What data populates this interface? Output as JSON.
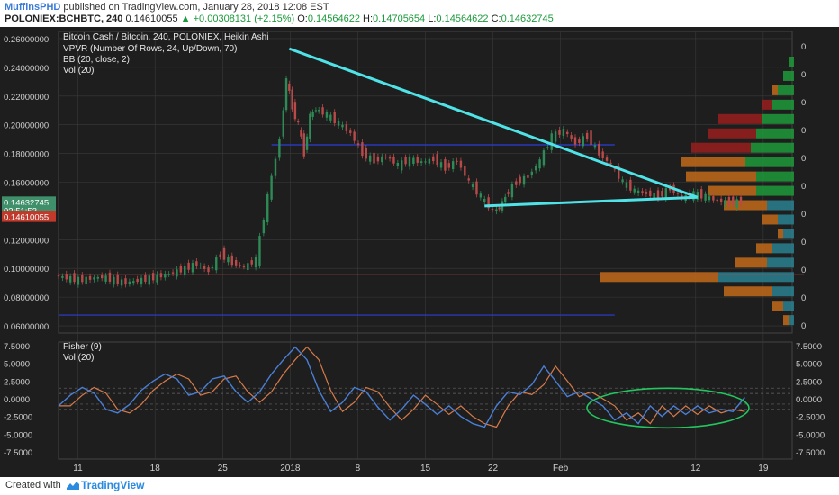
{
  "header": {
    "author": "MuffinsPHD",
    "published_text": "published on TradingView.com, January 28, 2018 12:08 EST",
    "symbol": "POLONIEX:BCHBTC, 240",
    "last": "0.14610055",
    "change": "+0.00308131 (+2.15%)",
    "o_label": "O:",
    "o": "0.14564622",
    "h_label": "H:",
    "h": "0.14705654",
    "l_label": "L:",
    "l": "0.14564622",
    "c_label": "C:",
    "c": "0.14632745"
  },
  "footer": {
    "created": "Created with",
    "brand": "TradingView"
  },
  "colors": {
    "bg": "#1e1e1e",
    "grid": "#3a3a3a",
    "trendline": "#4fe3e8",
    "candle_up": "#2e8b57",
    "candle_down": "#b84a4a",
    "fisher": "#4a7fd6",
    "trigger": "#d67a4a",
    "circle": "#22c55e",
    "vp_up": "#2a8090",
    "vp_down": "#c26a1a",
    "vp_up2": "#1f9a3a",
    "vp_down2": "#9a1f1f"
  },
  "chart_data": [
    {
      "type": "candlestick",
      "title": "Bitcoin Cash / Bitcoin, 240, POLONIEX, Heikin Ashi",
      "indicators": [
        "VPVR (Number Of Rows, 24, Up/Down, 70)",
        "BB (20, close, 2)",
        "Vol (20)"
      ],
      "y_ticks": [
        "0.26000000",
        "0.24000000",
        "0.22000000",
        "0.20000000",
        "0.18000000",
        "0.16000000",
        "0.14632745",
        "02:51:53",
        "0.14610055",
        "0.12000000",
        "0.10000000",
        "0.08000000",
        "0.06000000"
      ],
      "ylim": [
        0.055,
        0.265
      ],
      "x_ticks": [
        "11",
        "18",
        "25",
        "2018",
        "8",
        "15",
        "22",
        "Feb",
        "12",
        "19"
      ],
      "close_trace": [
        [
          0,
          0.095
        ],
        [
          2,
          0.092
        ],
        [
          4,
          0.094
        ],
        [
          6,
          0.09
        ],
        [
          8,
          0.093
        ],
        [
          10,
          0.097
        ],
        [
          12,
          0.103
        ],
        [
          13,
          0.098
        ],
        [
          14,
          0.11
        ],
        [
          15,
          0.104
        ],
        [
          16,
          0.101
        ],
        [
          17,
          0.106
        ],
        [
          18,
          0.15
        ],
        [
          19,
          0.19
        ],
        [
          19.5,
          0.232
        ],
        [
          20,
          0.212
        ],
        [
          20.5,
          0.2
        ],
        [
          21,
          0.18
        ],
        [
          21.5,
          0.206
        ],
        [
          22,
          0.211
        ],
        [
          23,
          0.207
        ],
        [
          24,
          0.201
        ],
        [
          25,
          0.194
        ],
        [
          26,
          0.18
        ],
        [
          27,
          0.175
        ],
        [
          28,
          0.178
        ],
        [
          29,
          0.172
        ],
        [
          30,
          0.176
        ],
        [
          31,
          0.174
        ],
        [
          32,
          0.176
        ],
        [
          33,
          0.17
        ],
        [
          34,
          0.175
        ],
        [
          35,
          0.16
        ],
        [
          36,
          0.15
        ],
        [
          37,
          0.14
        ],
        [
          37.5,
          0.142
        ],
        [
          38,
          0.15
        ],
        [
          39,
          0.16
        ],
        [
          40,
          0.164
        ],
        [
          41,
          0.175
        ],
        [
          42,
          0.192
        ],
        [
          43,
          0.196
        ],
        [
          44,
          0.187
        ],
        [
          45,
          0.192
        ],
        [
          46,
          0.18
        ],
        [
          47,
          0.172
        ],
        [
          48,
          0.16
        ],
        [
          49,
          0.154
        ],
        [
          50,
          0.152
        ],
        [
          51,
          0.15
        ],
        [
          52,
          0.156
        ],
        [
          53,
          0.149
        ],
        [
          54,
          0.152
        ],
        [
          55,
          0.15
        ],
        [
          56,
          0.147
        ],
        [
          57,
          0.146
        ],
        [
          58,
          0.1463
        ]
      ],
      "trendlines": [
        {
          "from": [
            19.5,
            0.253
          ],
          "to": [
            54,
            0.1495
          ]
        },
        {
          "from": [
            36,
            0.1435
          ],
          "to": [
            54,
            0.1495
          ]
        }
      ],
      "levels": [
        {
          "label": "",
          "y": 0.186,
          "x": [
            18,
            47
          ]
        },
        {
          "label": "",
          "y": 0.0955,
          "x": [
            0,
            63
          ]
        },
        {
          "label": "",
          "y": 0.0675,
          "x": [
            0,
            47
          ]
        }
      ],
      "volume_profile": [
        {
          "y": 0.244,
          "up": 1,
          "down": 0
        },
        {
          "y": 0.234,
          "up": 2,
          "down": 0
        },
        {
          "y": 0.224,
          "up": 3,
          "down": 1
        },
        {
          "y": 0.214,
          "up": 4,
          "down": 2
        },
        {
          "y": 0.204,
          "up": 6,
          "down": 8
        },
        {
          "y": 0.194,
          "up": 7,
          "down": 9
        },
        {
          "y": 0.184,
          "up": 8,
          "down": 11
        },
        {
          "y": 0.174,
          "up": 9,
          "down": 12
        },
        {
          "y": 0.164,
          "up": 7,
          "down": 13
        },
        {
          "y": 0.154,
          "up": 7,
          "down": 9
        },
        {
          "y": 0.144,
          "up": 5,
          "down": 8
        },
        {
          "y": 0.134,
          "up": 3,
          "down": 3
        },
        {
          "y": 0.124,
          "up": 2,
          "down": 1
        },
        {
          "y": 0.114,
          "up": 4,
          "down": 3
        },
        {
          "y": 0.104,
          "up": 5,
          "down": 6
        },
        {
          "y": 0.094,
          "up": 14,
          "down": 22
        },
        {
          "y": 0.084,
          "up": 4,
          "down": 9
        },
        {
          "y": 0.074,
          "up": 2,
          "down": 2
        },
        {
          "y": 0.064,
          "up": 1,
          "down": 1
        }
      ],
      "axis_right_ticks": [
        "0",
        "0",
        "0",
        "0",
        "0",
        "0",
        "0",
        "0",
        "0",
        "0",
        "0"
      ]
    },
    {
      "type": "line",
      "title": "Fisher (9)",
      "indicators": [
        "Vol (20)"
      ],
      "y_ticks": [
        "7.5000",
        "5.0000",
        "2.5000",
        "0.0000",
        "-2.5000",
        "-5.0000",
        "-7.5000"
      ],
      "y_ticks_right": [
        "7.5000",
        "5.0000",
        "2.5000",
        "0.0000",
        "-2.5000",
        "-5.0000",
        "-7.5000"
      ],
      "ylim": [
        -8.5,
        8.0
      ],
      "series": [
        {
          "values": [
            [
              0,
              -1
            ],
            [
              1,
              0.5
            ],
            [
              2,
              1.6
            ],
            [
              3,
              0.8
            ],
            [
              4,
              -1.5
            ],
            [
              5,
              -2.0
            ],
            [
              6,
              -0.8
            ],
            [
              7,
              1.2
            ],
            [
              8,
              2.5
            ],
            [
              9,
              3.5
            ],
            [
              10,
              2.8
            ],
            [
              11,
              0.5
            ],
            [
              12,
              1.0
            ],
            [
              13,
              2.8
            ],
            [
              14,
              3.2
            ],
            [
              15,
              1.0
            ],
            [
              16,
              -0.5
            ],
            [
              17,
              1.0
            ],
            [
              18,
              3.5
            ],
            [
              19,
              5.5
            ],
            [
              20,
              7.3
            ],
            [
              21,
              5.5
            ],
            [
              22,
              1.2
            ],
            [
              23,
              -1.8
            ],
            [
              24,
              -0.5
            ],
            [
              25,
              1.6
            ],
            [
              26,
              1.0
            ],
            [
              27,
              -1.2
            ],
            [
              28,
              -3.0
            ],
            [
              29,
              -1.5
            ],
            [
              30,
              0.5
            ],
            [
              31,
              -0.8
            ],
            [
              32,
              -2.2
            ],
            [
              33,
              -1.0
            ],
            [
              34,
              -2.5
            ],
            [
              35,
              -3.5
            ],
            [
              36,
              -4.0
            ],
            [
              37,
              -1.0
            ],
            [
              38,
              1.0
            ],
            [
              39,
              0.6
            ],
            [
              40,
              2.0
            ],
            [
              41,
              4.6
            ],
            [
              42,
              2.5
            ],
            [
              43,
              0.3
            ],
            [
              44,
              1.0
            ],
            [
              45,
              0.0
            ],
            [
              46,
              -1.0
            ],
            [
              47,
              -3.0
            ],
            [
              48,
              -2.0
            ],
            [
              49,
              -3.5
            ],
            [
              50,
              -1.0
            ],
            [
              51,
              -2.5
            ],
            [
              52,
              -1.0
            ],
            [
              53,
              -2.2
            ],
            [
              54,
              -1.0
            ],
            [
              55,
              -2.0
            ],
            [
              56,
              -1.5
            ],
            [
              57,
              -1.8
            ],
            [
              58,
              0.2
            ]
          ]
        }
      ],
      "zero_lines": [
        1.5,
        0.75,
        -0.75,
        -1.5
      ]
    }
  ]
}
